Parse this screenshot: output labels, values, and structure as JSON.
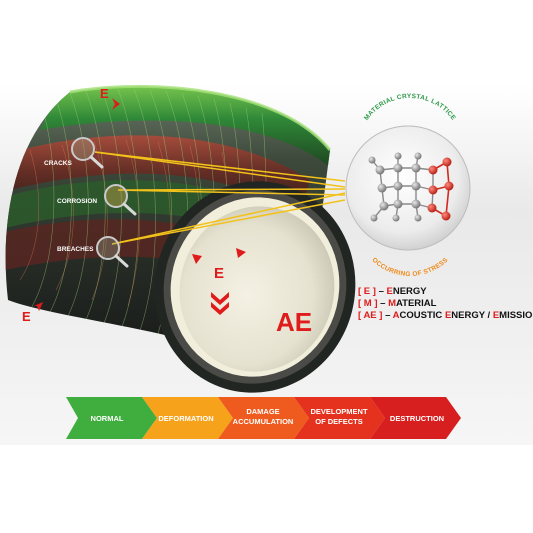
{
  "defects": {
    "cracks": "CRACKS",
    "corrosion": "CORROSION",
    "breaches": "BREACHES"
  },
  "markers": {
    "energy": "E",
    "ae": "AE"
  },
  "lattice": {
    "top_caption": "MATERIAL CRYSTAL LATTICE",
    "bottom_caption": "OCCURRING OF STRESS"
  },
  "legend": {
    "e_key": "[ E ]",
    "e_sep": " – ",
    "e_initial": "E",
    "e_rest": "NERGY",
    "m_key": "[ M ]",
    "m_sep": " – ",
    "m_initial": "M",
    "m_rest": "ATERIAL",
    "ae_key": "[ AE ]",
    "ae_sep": " – ",
    "ae_a": "A",
    "ae_coustic": "COUSTIC ",
    "ae_e1": "E",
    "ae_nergy": "NERGY / ",
    "ae_e2": "E",
    "ae_mission": "MISSION"
  },
  "stages": [
    {
      "line1": "NORMAL",
      "line2": ""
    },
    {
      "line1": "DEFORMATION",
      "line2": ""
    },
    {
      "line1": "DAMAGE",
      "line2": "ACCUMULATION"
    },
    {
      "line1": "DEVELOPMENT",
      "line2": "OF DEFECTS"
    },
    {
      "line1": "DESTRUCTION",
      "line2": ""
    }
  ],
  "colors": {
    "normal": "#3fae3f",
    "deformation": "#f6a21a",
    "damage": "#ef5a1e",
    "defects": "#e4321e",
    "destruction": "#d81f1f",
    "accent_red": "#e01b1b",
    "beam_yellow": "#f2c21b",
    "stress_orange": "#ef8a1b",
    "lattice_green": "#2e9a4a"
  }
}
